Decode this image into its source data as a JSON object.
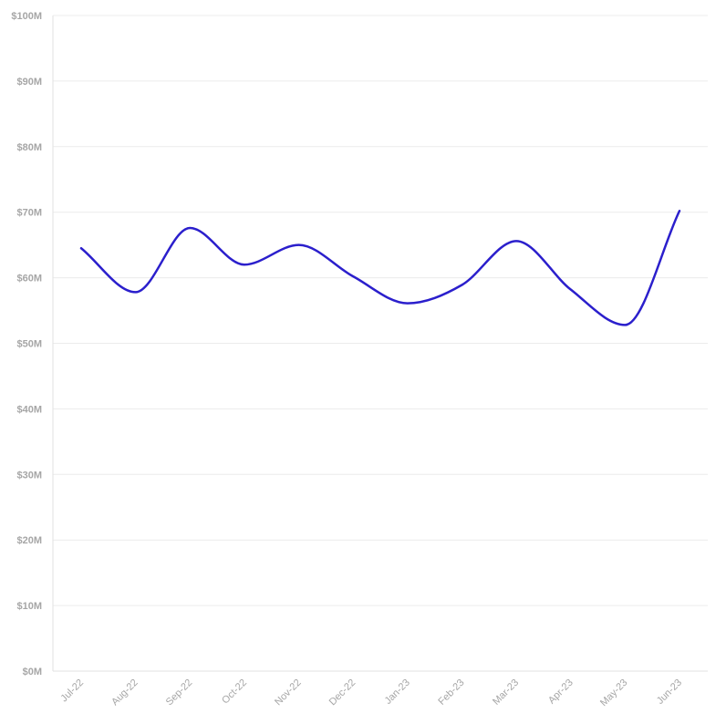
{
  "chart_data": {
    "type": "line",
    "title": "",
    "xlabel": "",
    "ylabel": "",
    "categories": [
      "Jul-22",
      "Aug-22",
      "Sep-22",
      "Oct-22",
      "Nov-22",
      "Dec-22",
      "Jan-23",
      "Feb-23",
      "Mar-23",
      "Apr-23",
      "May-23",
      "Jun-23"
    ],
    "series": [
      {
        "values": [
          64.5,
          57.8,
          67.6,
          62.0,
          65.0,
          60.2,
          56.1,
          58.9,
          65.6,
          58.2,
          52.8,
          70.2
        ],
        "color": "#2b1fcc"
      }
    ],
    "ylim": [
      0,
      100
    ],
    "y_ticks": [
      {
        "value": 0,
        "label": "$0M"
      },
      {
        "value": 10,
        "label": "$10M"
      },
      {
        "value": 20,
        "label": "$20M"
      },
      {
        "value": 30,
        "label": "$30M"
      },
      {
        "value": 40,
        "label": "$40M"
      },
      {
        "value": 50,
        "label": "$50M"
      },
      {
        "value": 60,
        "label": "$60M"
      },
      {
        "value": 70,
        "label": "$70M"
      },
      {
        "value": 80,
        "label": "$80M"
      },
      {
        "value": 90,
        "label": "$90M"
      },
      {
        "value": 100,
        "label": "$100M"
      }
    ],
    "grid": true,
    "legend": "none",
    "line_smoothing": "curved"
  }
}
